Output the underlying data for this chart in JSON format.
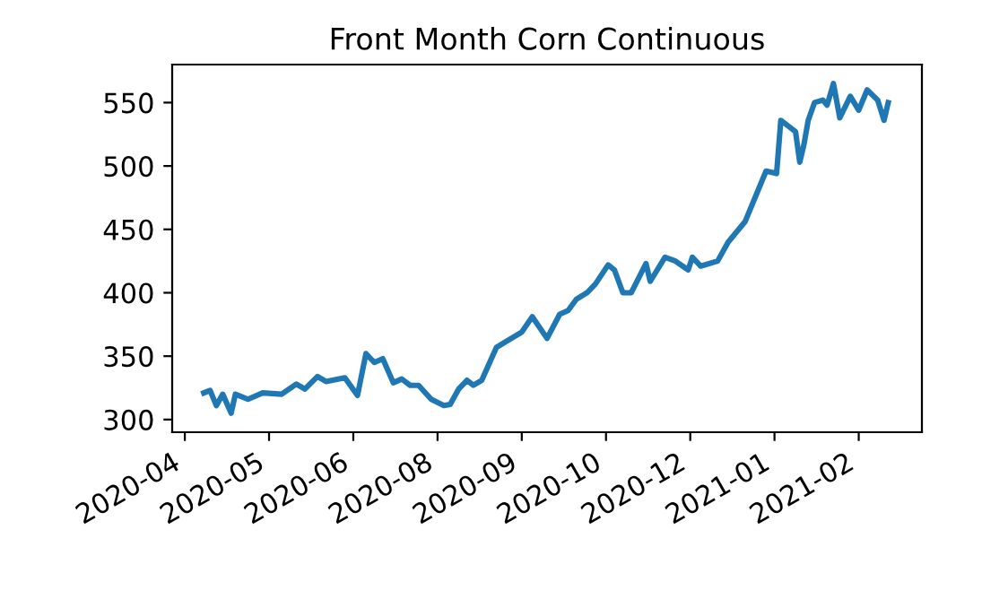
{
  "chart_data": {
    "type": "line",
    "title": "Front Month Corn Continuous",
    "x": [
      "2020-04-14",
      "2020-04-17",
      "2020-04-20",
      "2020-04-23",
      "2020-04-27",
      "2020-04-29",
      "2020-05-05",
      "2020-05-12",
      "2020-05-21",
      "2020-05-28",
      "2020-06-01",
      "2020-06-07",
      "2020-06-11",
      "2020-06-20",
      "2020-06-26",
      "2020-06-30",
      "2020-07-04",
      "2020-07-08",
      "2020-07-13",
      "2020-07-17",
      "2020-07-21",
      "2020-07-25",
      "2020-07-31",
      "2020-08-06",
      "2020-08-09",
      "2020-08-13",
      "2020-08-17",
      "2020-08-20",
      "2020-08-24",
      "2020-08-31",
      "2020-09-04",
      "2020-09-12",
      "2020-09-17",
      "2020-09-24",
      "2020-09-30",
      "2020-10-04",
      "2020-10-08",
      "2020-10-13",
      "2020-10-17",
      "2020-10-23",
      "2020-10-26",
      "2020-10-30",
      "2020-11-03",
      "2020-11-06",
      "2020-11-10",
      "2020-11-12",
      "2020-11-19",
      "2020-11-24",
      "2020-11-30",
      "2020-12-02",
      "2020-12-06",
      "2020-12-14",
      "2020-12-19",
      "2020-12-27",
      "2021-01-03",
      "2021-01-06",
      "2021-01-11",
      "2021-01-13",
      "2021-01-20",
      "2021-01-22",
      "2021-01-24",
      "2021-01-26",
      "2021-01-29",
      "2021-02-02",
      "2021-02-04",
      "2021-02-07",
      "2021-02-10",
      "2021-02-15",
      "2021-02-19",
      "2021-02-23",
      "2021-02-28",
      "2021-03-03",
      "2021-03-05"
    ],
    "series": [
      {
        "color": "#1f77b4",
        "values": [
          321,
          323,
          311,
          320,
          305,
          320,
          316,
          321,
          320,
          328,
          324,
          334,
          330,
          333,
          319,
          352,
          345,
          348,
          329,
          332,
          327,
          327,
          316,
          311,
          312,
          324,
          331,
          327,
          331,
          357,
          361,
          369,
          381,
          364,
          383,
          386,
          395,
          400,
          407,
          422,
          418,
          400,
          400,
          410,
          423,
          409,
          428,
          425,
          418,
          428,
          421,
          425,
          440,
          456,
          484,
          496,
          494,
          536,
          527,
          503,
          517,
          536,
          550,
          552,
          548,
          565,
          538,
          555,
          544,
          560,
          552,
          536,
          550
        ]
      }
    ],
    "xlim": [
      "2020-03-30",
      "2021-03-21"
    ],
    "xticks": [
      {
        "value": "2020-04-05",
        "label": "2020-04"
      },
      {
        "value": "2020-05-15",
        "label": "2020-05"
      },
      {
        "value": "2020-06-24",
        "label": "2020-06"
      },
      {
        "value": "2020-08-03",
        "label": "2020-08"
      },
      {
        "value": "2020-09-12",
        "label": "2020-09"
      },
      {
        "value": "2020-10-22",
        "label": "2020-10"
      },
      {
        "value": "2020-12-01",
        "label": "2020-12"
      },
      {
        "value": "2021-01-10",
        "label": "2021-01"
      },
      {
        "value": "2021-02-19",
        "label": "2021-02"
      }
    ],
    "ylim": [
      290,
      580
    ],
    "yticks": [
      300,
      350,
      400,
      450,
      500,
      550
    ],
    "grid": false
  }
}
